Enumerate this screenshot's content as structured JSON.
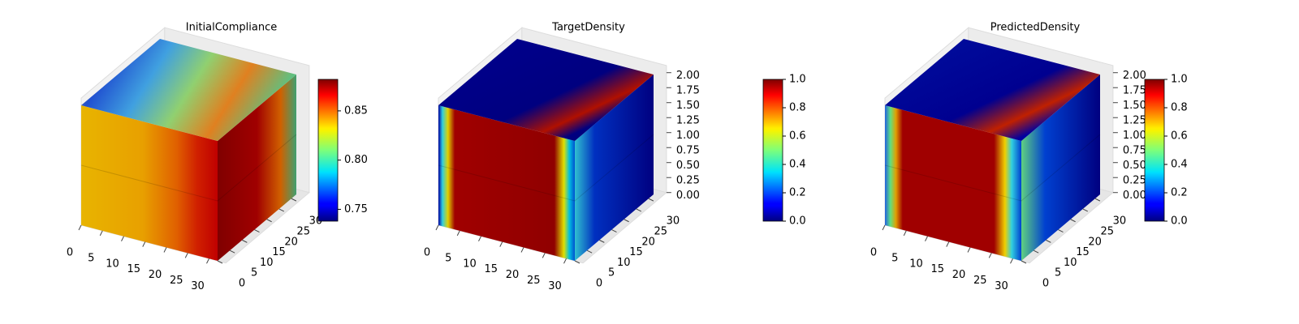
{
  "chart_data": [
    {
      "type": "voxel3d",
      "title": "InitialCompliance",
      "xlim": [
        0,
        32
      ],
      "xticks": [
        0,
        5,
        10,
        15,
        20,
        25,
        30
      ],
      "ylim": [
        0,
        32
      ],
      "yticks": [
        0,
        5,
        10,
        15,
        20,
        25,
        30
      ],
      "colormap": "jet",
      "clim": [
        0.738,
        0.882
      ],
      "cticks": [
        {
          "value": 0.75,
          "label": "0.75"
        },
        {
          "value": 0.8,
          "label": "0.80"
        },
        {
          "value": 0.85,
          "label": "0.85"
        }
      ]
    },
    {
      "type": "voxel3d",
      "title": "TargetDensity",
      "xlim": [
        0,
        32
      ],
      "xticks": [
        0,
        5,
        10,
        15,
        20,
        25,
        30
      ],
      "ylim": [
        0,
        32
      ],
      "yticks": [
        0,
        5,
        10,
        15,
        20,
        25,
        30
      ],
      "zlim": [
        0,
        2
      ],
      "zticks": [
        {
          "value": 0,
          "label": "0.00"
        },
        {
          "value": 0.25,
          "label": "0.25"
        },
        {
          "value": 0.5,
          "label": "0.50"
        },
        {
          "value": 0.75,
          "label": "0.75"
        },
        {
          "value": 1,
          "label": "1.00"
        },
        {
          "value": 1.25,
          "label": "1.25"
        },
        {
          "value": 1.5,
          "label": "1.50"
        },
        {
          "value": 1.75,
          "label": "1.75"
        },
        {
          "value": 2,
          "label": "2.00"
        }
      ],
      "colormap": "jet",
      "clim": [
        0,
        1
      ],
      "cticks": [
        {
          "value": 0,
          "label": "0.0"
        },
        {
          "value": 0.2,
          "label": "0.2"
        },
        {
          "value": 0.4,
          "label": "0.4"
        },
        {
          "value": 0.6,
          "label": "0.6"
        },
        {
          "value": 0.8,
          "label": "0.8"
        },
        {
          "value": 1,
          "label": "1.0"
        }
      ]
    },
    {
      "type": "voxel3d",
      "title": "PredictedDensity",
      "xlim": [
        0,
        32
      ],
      "xticks": [
        0,
        5,
        10,
        15,
        20,
        25,
        30
      ],
      "ylim": [
        0,
        32
      ],
      "yticks": [
        0,
        5,
        10,
        15,
        20,
        25,
        30
      ],
      "zlim": [
        0,
        2
      ],
      "zticks": [
        {
          "value": 0,
          "label": "0.00"
        },
        {
          "value": 0.25,
          "label": "0.25"
        },
        {
          "value": 0.5,
          "label": "0.50"
        },
        {
          "value": 0.75,
          "label": "0.75"
        },
        {
          "value": 1,
          "label": "1.00"
        },
        {
          "value": 1.25,
          "label": "1.25"
        },
        {
          "value": 1.5,
          "label": "1.50"
        },
        {
          "value": 1.75,
          "label": "1.75"
        },
        {
          "value": 2,
          "label": "2.00"
        }
      ],
      "colormap": "jet",
      "clim": [
        0,
        1
      ],
      "cticks": [
        {
          "value": 0,
          "label": "0.0"
        },
        {
          "value": 0.2,
          "label": "0.2"
        },
        {
          "value": 0.4,
          "label": "0.4"
        },
        {
          "value": 0.6,
          "label": "0.6"
        },
        {
          "value": 0.8,
          "label": "0.8"
        },
        {
          "value": 1,
          "label": "1.0"
        }
      ]
    }
  ]
}
